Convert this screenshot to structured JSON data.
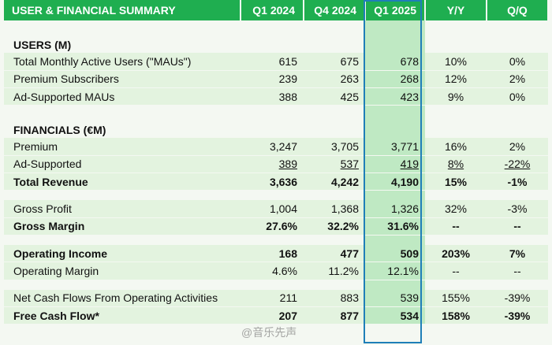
{
  "header": {
    "title": "USER & FINANCIAL SUMMARY",
    "col1": "Q1 2024",
    "col2": "Q4 2024",
    "col3": "Q1 2025",
    "col4": "Y/Y",
    "col5": "Q/Q"
  },
  "users": {
    "section_title": "USERS (M)",
    "rows": [
      {
        "label": "Total Monthly Active Users (\"MAUs\")",
        "q1_2024": "615",
        "q4_2024": "675",
        "q1_2025": "678",
        "yy": "10%",
        "qq": "0%"
      },
      {
        "label": "Premium Subscribers",
        "q1_2024": "239",
        "q4_2024": "263",
        "q1_2025": "268",
        "yy": "12%",
        "qq": "2%"
      },
      {
        "label": "Ad-Supported MAUs",
        "q1_2024": "388",
        "q4_2024": "425",
        "q1_2025": "423",
        "yy": "9%",
        "qq": "0%"
      }
    ]
  },
  "financials": {
    "section_title": "FINANCIALS (€M)",
    "rows": [
      {
        "label": "Premium",
        "q1_2024": "3,247",
        "q4_2024": "3,705",
        "q1_2025": "3,771",
        "yy": "16%",
        "qq": "2%"
      },
      {
        "label": "Ad-Supported",
        "q1_2024": "389",
        "q4_2024": "537",
        "q1_2025": "419",
        "yy": "8%",
        "qq": "-22%"
      },
      {
        "label": "Total Revenue",
        "q1_2024": "3,636",
        "q4_2024": "4,242",
        "q1_2025": "4,190",
        "yy": "15%",
        "qq": "-1%"
      },
      {
        "label": "Gross Profit",
        "q1_2024": "1,004",
        "q4_2024": "1,368",
        "q1_2025": "1,326",
        "yy": "32%",
        "qq": "-3%"
      },
      {
        "label": "Gross Margin",
        "q1_2024": "27.6%",
        "q4_2024": "32.2%",
        "q1_2025": "31.6%",
        "yy": "--",
        "qq": "--"
      },
      {
        "label": "Operating Income",
        "q1_2024": "168",
        "q4_2024": "477",
        "q1_2025": "509",
        "yy": "203%",
        "qq": "7%"
      },
      {
        "label": "Operating Margin",
        "q1_2024": "4.6%",
        "q4_2024": "11.2%",
        "q1_2025": "12.1%",
        "yy": "--",
        "qq": "--"
      },
      {
        "label": "Net Cash Flows From Operating Activities",
        "q1_2024": "211",
        "q4_2024": "883",
        "q1_2025": "539",
        "yy": "155%",
        "qq": "-39%"
      },
      {
        "label": "Free Cash Flow*",
        "q1_2024": "207",
        "q4_2024": "877",
        "q1_2025": "534",
        "yy": "158%",
        "qq": "-39%"
      }
    ]
  },
  "watermark": "@音乐先声",
  "colors": {
    "header_bg": "#1fae50",
    "row_bg": "#e3f3df",
    "highlight_bg": "#bfe9c3",
    "highlight_border": "#1f7fb8"
  }
}
